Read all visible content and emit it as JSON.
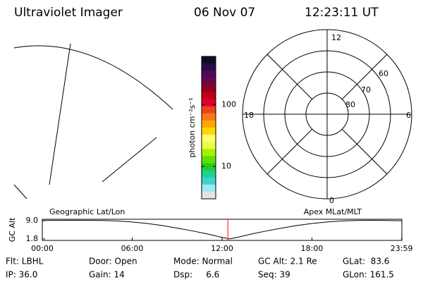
{
  "header": {
    "title": "Ultraviolet Imager",
    "date": "06 Nov 07",
    "time": "12:23:11 UT"
  },
  "polar": {
    "mlt_labels": [
      "12",
      "18",
      "6",
      "0"
    ],
    "lat_labels": [
      "60",
      "70",
      "80"
    ]
  },
  "chart_data": [
    {
      "type": "colorbar",
      "label": "photon cm⁻²s⁻¹",
      "log_scale": true,
      "ylim": [
        3,
        600
      ],
      "yticks": [
        10,
        100
      ],
      "colors": [
        "#140828",
        "#2a0a4a",
        "#4c0a5c",
        "#6a0840",
        "#900020",
        "#c00018",
        "#e0002a",
        "#f04020",
        "#f87818",
        "#ffa800",
        "#ffd800",
        "#ffff70",
        "#e8ff40",
        "#a8f000",
        "#60e000",
        "#20d020",
        "#20d090",
        "#40d0d0",
        "#a0e8f0",
        "#dde6ea"
      ]
    },
    {
      "type": "line",
      "y_label": "GC Alt",
      "left_label": "Geographic Lat/Lon",
      "right_label": "Apex MLat/MLT",
      "x": [
        0,
        2,
        4,
        5,
        6,
        7,
        8,
        9,
        10,
        11,
        12,
        12.5,
        13,
        14,
        15,
        16,
        17,
        18,
        19,
        20,
        21,
        22,
        23,
        24
      ],
      "values": [
        9.1,
        9.15,
        9.1,
        8.9,
        8.5,
        7.9,
        7.1,
        6.1,
        5.0,
        3.8,
        2.4,
        1.8,
        2.4,
        3.8,
        5.0,
        6.1,
        7.1,
        7.9,
        8.5,
        8.9,
        9.1,
        9.15,
        9.1,
        9.0
      ],
      "color": "#000000",
      "xlim": [
        0,
        24
      ],
      "xticks": [
        {
          "value": 0,
          "label": "00:00"
        },
        {
          "value": 6,
          "label": "06:00"
        },
        {
          "value": 12,
          "label": "12:00"
        },
        {
          "value": 18,
          "label": "18:00"
        },
        {
          "value": 23.983,
          "label": "23:59"
        }
      ],
      "ylim": [
        1.5,
        9.3
      ],
      "yticks": [
        {
          "value": 9,
          "label": "9.0"
        },
        {
          "value": 1.8,
          "label": "1.8"
        }
      ],
      "marker": {
        "x": 12.386,
        "color": "#ff0000"
      }
    }
  ],
  "info": {
    "rows": [
      [
        "Flt: LBHL",
        "Door: Open",
        "Mode: Normal",
        "GC Alt: 2.1 Re",
        "GLat:  83.6"
      ],
      [
        "IP: 36.0",
        "Gain: 14",
        "Dsp:     6.6",
        "Seq: 39",
        "GLon: 161.5"
      ]
    ]
  }
}
